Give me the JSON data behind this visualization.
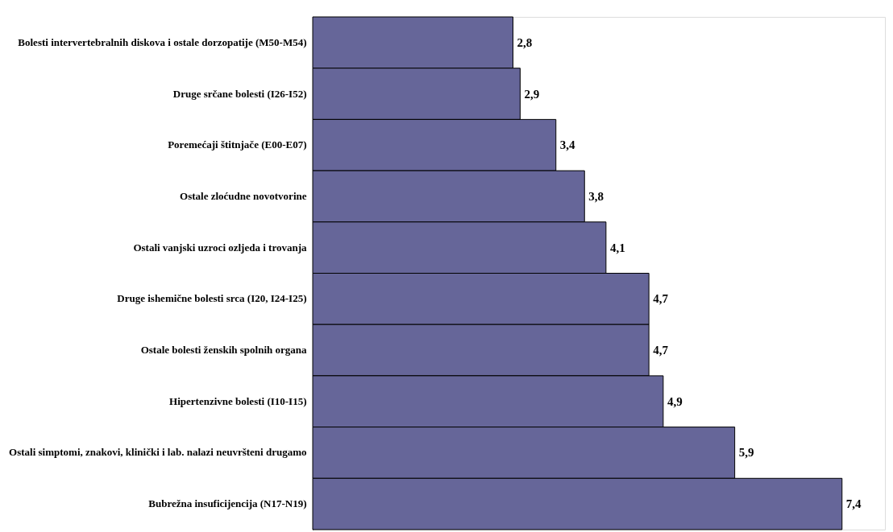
{
  "chart_data": {
    "type": "bar",
    "orientation": "horizontal",
    "categories": [
      "Bolesti intervertebralnih diskova i ostale dorzopatije (M50-M54)",
      "Druge srčane bolesti (I26-I52)",
      "Poremećaji štitnjače (E00-E07)",
      "Ostale zloćudne novotvorine",
      "Ostali vanjski uzroci ozljeda i trovanja",
      "Druge ishemične bolesti srca (I20, I24-I25)",
      "Ostale bolesti ženskih spolnih organa",
      "Hipertenzivne bolesti (I10-I15)",
      "Ostali simptomi, znakovi, klinički i lab. nalazi neuvršteni drugamo",
      "Bubrežna insuficijencija (N17-N19)"
    ],
    "values": [
      2.8,
      2.9,
      3.4,
      3.8,
      4.1,
      4.7,
      4.7,
      4.9,
      5.9,
      7.4
    ],
    "value_labels": [
      "2,8",
      "2,9",
      "3,4",
      "3,8",
      "4,1",
      "4,7",
      "4,7",
      "4,9",
      "5,9",
      "7,4"
    ],
    "color": "#666699"
  }
}
